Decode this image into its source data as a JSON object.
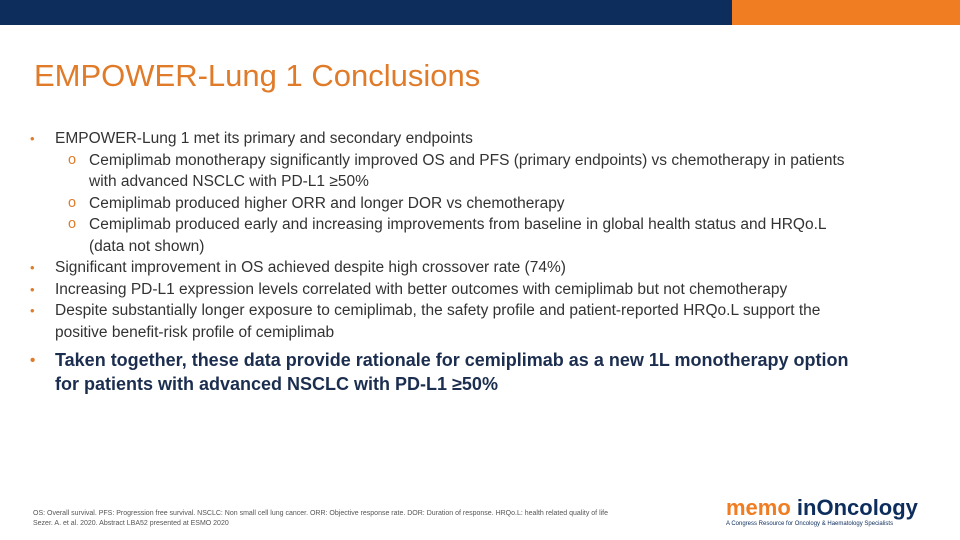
{
  "colors": {
    "navy": "#0d2d5c",
    "orange": "#f07d22",
    "title": "#e07b2a"
  },
  "slide": {
    "title": "EMPOWER-Lung 1 Conclusions",
    "bullets": [
      {
        "text": "EMPOWER-Lung 1 met its primary and secondary endpoints",
        "subs": [
          {
            "text": "Cemiplimab monotherapy significantly improved OS and PFS (primary endpoints) vs chemotherapy in patients with advanced NSCLC with PD-L1 ≥50%"
          },
          {
            "text": "Cemiplimab produced higher ORR and longer DOR vs chemotherapy"
          },
          {
            "text": "Cemiplimab produced early and increasing improvements from baseline in global health status and HRQo.L (data not shown)"
          }
        ]
      },
      {
        "text": "Significant improvement in OS achieved despite high crossover rate (74%)"
      },
      {
        "text": "Increasing PD-L1 expression levels correlated with better outcomes with cemiplimab but not chemotherapy"
      },
      {
        "text": "Despite substantially longer exposure to cemiplimab, the safety profile and patient-reported HRQo.L support the positive benefit-risk profile of cemiplimab"
      },
      {
        "text": "Taken together, these data provide rationale for cemiplimab as a new 1L monotherapy option for patients with advanced NSCLC with PD-L1 ≥50%"
      }
    ],
    "bullet_marker": "•",
    "sub_marker": "o",
    "footnote": {
      "line1": "OS: Overall survival. PFS: Progression free survival. NSCLC: Non small cell lung cancer. ORR: Objective response rate. DOR: Duration of response. HRQo.L: health related quality of life",
      "line2": "Sezer. A. et al. 2020. Abstract LBA52 presented at ESMO 2020"
    },
    "logo": {
      "memo": "memo",
      "oncology": "inOncology",
      "tagline": "A Congress Resource for Oncology & Haematology Specialists"
    }
  }
}
